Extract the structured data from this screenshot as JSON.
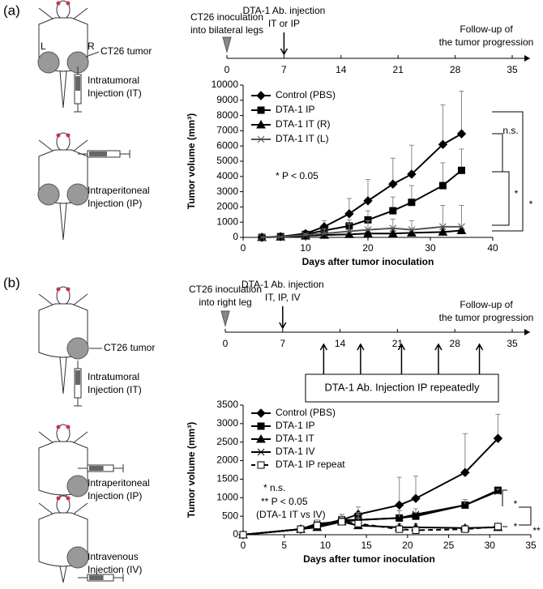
{
  "panel_a": {
    "label": "(a)",
    "side_labels": [
      "L",
      "R"
    ],
    "tumor": "CT26 tumor",
    "injections": [
      [
        "Intratumoral",
        "Injection (IT)"
      ],
      [
        "Intraperitoneal",
        "Injection (IP)"
      ]
    ],
    "timeline": {
      "ticks": [
        0,
        7,
        14,
        21,
        28,
        35
      ],
      "inoculation_day": 0,
      "injection_day": 7,
      "inoculation": [
        "CT26 inoculation",
        "into bilateral legs"
      ],
      "injection": [
        "DTA-1 Ab. injection",
        "IT or IP"
      ],
      "followup": [
        "Follow-up of",
        "the tumor progression"
      ]
    }
  },
  "panel_b": {
    "label": "(b)",
    "tumor": "CT26 tumor",
    "injections": [
      [
        "Intratumoral",
        "Injection (IT)"
      ],
      [
        "Intraperitoneal",
        "Injection (IP)"
      ],
      [
        "Intravenous",
        "Injection (IV)"
      ]
    ],
    "timeline": {
      "ticks": [
        0,
        7,
        14,
        21,
        28,
        35
      ],
      "inoculation_day": 0,
      "injection_day": 7,
      "inoculation": [
        "CT26 inoculation",
        "into right leg"
      ],
      "injection": [
        "DTA-1 Ab. injection",
        "IT, IP, IV"
      ],
      "followup": [
        "Follow-up of",
        "the tumor progression"
      ],
      "repeat": {
        "label": "DTA-1 Ab. Injection IP repeatedly",
        "days": [
          12,
          16.5,
          21.5,
          26,
          31
        ]
      }
    }
  },
  "chart_data": [
    {
      "type": "line",
      "xlabel": "Days after tumor inoculation",
      "ylabel": "Tumor volume (mm³)",
      "x": [
        3,
        6,
        10,
        13,
        17,
        20,
        24,
        27,
        32,
        35
      ],
      "xlim": [
        0,
        40
      ],
      "xticks": [
        0,
        10,
        20,
        30,
        40
      ],
      "ylim": [
        0,
        10000
      ],
      "yticks": [
        0,
        1000,
        2000,
        3000,
        4000,
        5000,
        6000,
        7000,
        8000,
        9000,
        10000
      ],
      "series": [
        {
          "name": "Control (PBS)",
          "color": "#000000",
          "marker": "diamond",
          "dash": false,
          "values": [
            0,
            50,
            250,
            700,
            1550,
            2400,
            3500,
            4150,
            6100,
            6800
          ],
          "errors": [
            null,
            null,
            150,
            400,
            1000,
            1400,
            1700,
            1900,
            2600,
            2800
          ]
        },
        {
          "name": "DTA-1 IP",
          "color": "#000000",
          "marker": "square",
          "dash": false,
          "values": [
            0,
            50,
            200,
            450,
            750,
            1150,
            1750,
            2300,
            3400,
            4400
          ],
          "errors": [
            null,
            null,
            80,
            200,
            400,
            600,
            900,
            1100,
            1500,
            1400
          ]
        },
        {
          "name": "DTA-1 IT (R)",
          "color": "#000000",
          "marker": "triangle",
          "dash": false,
          "values": [
            0,
            30,
            100,
            150,
            200,
            250,
            250,
            300,
            350,
            450
          ],
          "errors": [
            null,
            null,
            null,
            100,
            150,
            150,
            150,
            200,
            200,
            200
          ]
        },
        {
          "name": "DTA-1 IT (L)",
          "color": "#555555",
          "marker": "cross",
          "dash": false,
          "values": [
            0,
            30,
            150,
            250,
            400,
            500,
            600,
            500,
            700,
            700
          ],
          "errors": [
            null,
            null,
            100,
            300,
            500,
            600,
            600,
            600,
            1400,
            1400
          ]
        }
      ],
      "annotations": [
        "* P < 0.05",
        "n.s.",
        "*",
        "*"
      ]
    },
    {
      "type": "line",
      "xlabel": "Days after tumor inoculation",
      "ylabel": "Tumor volume (mm³)",
      "x": [
        0,
        7,
        9,
        12,
        14,
        19,
        21,
        27,
        31
      ],
      "xlim": [
        0,
        35
      ],
      "xticks": [
        0,
        5,
        10,
        15,
        20,
        25,
        30,
        35
      ],
      "ylim": [
        0,
        3500
      ],
      "yticks": [
        0,
        500,
        1000,
        1500,
        2000,
        2500,
        3000,
        3500
      ],
      "series": [
        {
          "name": "Control (PBS)",
          "color": "#000000",
          "marker": "diamond",
          "dash": false,
          "values": [
            0,
            150,
            250,
            400,
            550,
            800,
            980,
            1680,
            2600
          ],
          "errors": [
            null,
            null,
            100,
            150,
            200,
            750,
            600,
            1050,
            650
          ]
        },
        {
          "name": "DTA-1 IP",
          "color": "#000000",
          "marker": "square",
          "dash": false,
          "values": [
            0,
            150,
            250,
            400,
            400,
            450,
            500,
            800,
            1200
          ],
          "errors": [
            null,
            null,
            80,
            150,
            150,
            200,
            200,
            150,
            60
          ]
        },
        {
          "name": "DTA-1 IT",
          "color": "#000000",
          "marker": "triangle",
          "dash": false,
          "values": [
            0,
            150,
            200,
            350,
            250,
            200,
            200,
            180,
            200
          ],
          "errors": [
            null,
            null,
            80,
            100,
            150,
            100,
            100,
            80,
            60
          ]
        },
        {
          "name": "DTA-1 IV",
          "color": "#000000",
          "marker": "cross",
          "dash": false,
          "values": [
            0,
            150,
            300,
            350,
            400,
            450,
            550,
            800,
            1170
          ],
          "errors": [
            null,
            null,
            100,
            150,
            200,
            200,
            150,
            150,
            60
          ]
        },
        {
          "name": "DTA-1 IP repeat",
          "color": "#000000",
          "marker": "open-square",
          "dash": true,
          "values": [
            0,
            150,
            250,
            350,
            300,
            150,
            120,
            150,
            220
          ],
          "errors": [
            null,
            null,
            100,
            120,
            150,
            80,
            60,
            60,
            60
          ]
        }
      ],
      "annotations": [
        "*   n.s.",
        "**  P < 0.05",
        "(DTA-1  IT vs IV)",
        "*",
        "**",
        "*"
      ]
    }
  ]
}
